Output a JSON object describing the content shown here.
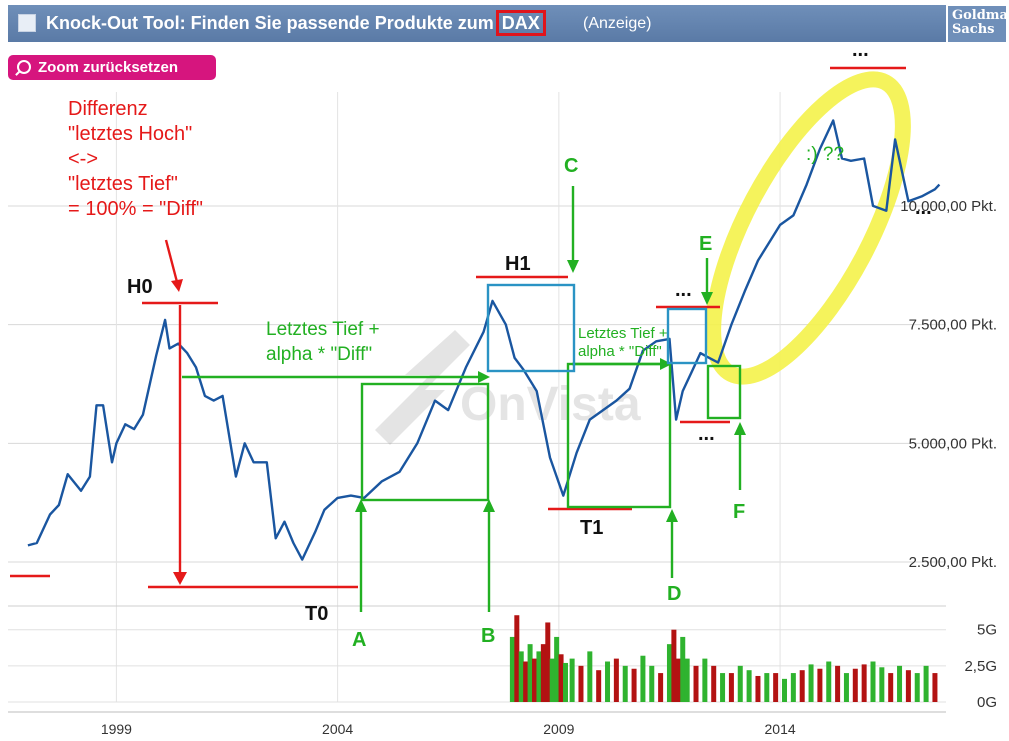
{
  "ad": {
    "title_prefix": "Knock-Out Tool: Finden Sie passende Produkte zum",
    "title_highlight": "DAX",
    "label": "(Anzeige)",
    "logo_line1": "Goldman",
    "logo_line2": "Sachs"
  },
  "toolbar": {
    "zoom_reset_label": "Zoom zurücksetzen"
  },
  "watermark": "OnVista",
  "annotations": {
    "diff_lines": [
      "Differenz",
      "\"letztes Hoch\"",
      "<->",
      "\"letztes Tief\"",
      "= 100% = \"Diff\""
    ],
    "rule_lines": [
      "Letztes Tief +",
      "alpha * \"Diff\""
    ],
    "rule_small_lines": [
      "Letztes Tief +",
      "alpha * \"Diff\""
    ],
    "smiley": ":) ??",
    "points": {
      "H0": "H0",
      "T0": "T0",
      "H1": "H1",
      "T1": "T1",
      "A": "A",
      "B": "B",
      "C": "C",
      "D": "D",
      "E": "E",
      "F": "F",
      "dots": "..."
    }
  },
  "colors": {
    "line": "#1a56a0",
    "annotation_red": "#e51919",
    "annotation_green": "#22b022",
    "box_blue": "#2a93c4",
    "highlight_yellow": "#f4f24a",
    "volume_up": "#2fb32f",
    "volume_down": "#b31212",
    "ad_bar": "#6f8fb9",
    "zoom_button": "#d6157e"
  },
  "chart_data": [
    {
      "type": "line",
      "title": "",
      "series": [
        {
          "name": "",
          "x": [
            1997.0,
            1997.2,
            1997.5,
            1997.7,
            1997.9,
            1998.2,
            1998.4,
            1998.55,
            1998.7,
            1998.9,
            1999.0,
            1999.2,
            1999.4,
            1999.6,
            1999.9,
            2000.1,
            2000.2,
            2000.4,
            2000.6,
            2000.8,
            2001.0,
            2001.2,
            2001.4,
            2001.7,
            2001.9,
            2002.1,
            2002.4,
            2002.6,
            2002.8,
            2003.0,
            2003.2,
            2003.5,
            2003.7,
            2004.0,
            2004.3,
            2004.6,
            2005.0,
            2005.4,
            2005.8,
            2006.2,
            2006.5,
            2006.9,
            2007.3,
            2007.5,
            2007.8,
            2008.0,
            2008.2,
            2008.5,
            2008.8,
            2009.1,
            2009.4,
            2009.7,
            2010.0,
            2010.3,
            2010.6,
            2010.9,
            2011.2,
            2011.5,
            2011.65,
            2011.8,
            2012.0,
            2012.2,
            2012.4,
            2012.6,
            2012.9,
            2013.2,
            2013.5,
            2013.8,
            2014.0,
            2014.3,
            2014.6,
            2014.9,
            2015.2,
            2015.4,
            2015.6,
            2015.9,
            2016.1,
            2016.4,
            2016.6,
            2016.9,
            2017.2,
            2017.5,
            2017.6
          ],
          "values": [
            2850,
            2900,
            3500,
            3700,
            4350,
            4000,
            4300,
            5800,
            5800,
            4600,
            5000,
            5400,
            5300,
            5600,
            6850,
            7600,
            7000,
            7100,
            6900,
            6600,
            6000,
            5900,
            6000,
            4300,
            5000,
            4600,
            4600,
            3000,
            3350,
            2900,
            2550,
            3150,
            3600,
            3850,
            3900,
            3850,
            4200,
            4400,
            5000,
            5900,
            5700,
            6600,
            7350,
            8000,
            7500,
            6800,
            6550,
            6100,
            4700,
            3900,
            4800,
            5500,
            5700,
            5900,
            6150,
            6950,
            7150,
            7200,
            5500,
            6100,
            6500,
            6900,
            6800,
            6700,
            7500,
            8200,
            8850,
            9300,
            9600,
            9800,
            10450,
            11200,
            11800,
            11000,
            10950,
            11000,
            10000,
            9900,
            11400,
            10100,
            10200,
            10350,
            10450
          ]
        }
      ],
      "xlabel": "",
      "ylabel": "",
      "xticks": [
        "1999",
        "2004",
        "2009",
        "2014"
      ],
      "yticks": [
        "2.500,00 Pkt.",
        "5.000,00 Pkt.",
        "7.500,00 Pkt.",
        "10.000,00 Pkt."
      ],
      "xlim": [
        1996.55,
        2017.75
      ],
      "ylim": [
        1700,
        12400
      ],
      "grid": true,
      "legend": "none"
    },
    {
      "type": "bar",
      "title": "",
      "yticks": [
        "5G",
        "2,5G",
        "0G"
      ],
      "ylim": [
        0,
        6.5
      ],
      "series": [
        {
          "name": "",
          "x": [
            2007.95,
            2008.05,
            2008.15,
            2008.25,
            2008.35,
            2008.45,
            2008.55,
            2008.65,
            2008.75,
            2008.85,
            2008.95,
            2009.05,
            2009.15,
            2009.3,
            2009.5,
            2009.7,
            2009.9,
            2010.1,
            2010.3,
            2010.5,
            2010.7,
            2010.9,
            2011.1,
            2011.3,
            2011.5,
            2011.6,
            2011.7,
            2011.8,
            2011.9,
            2012.1,
            2012.3,
            2012.5,
            2012.7,
            2012.9,
            2013.1,
            2013.3,
            2013.5,
            2013.7,
            2013.9,
            2014.1,
            2014.3,
            2014.5,
            2014.7,
            2014.9,
            2015.1,
            2015.3,
            2015.5,
            2015.7,
            2015.9,
            2016.1,
            2016.3,
            2016.5,
            2016.7,
            2016.9,
            2017.1,
            2017.3,
            2017.5
          ],
          "values": [
            4.5,
            6.0,
            3.5,
            2.8,
            4.0,
            3.0,
            3.5,
            4.0,
            5.5,
            3.0,
            4.5,
            3.3,
            2.7,
            3.0,
            2.5,
            3.5,
            2.2,
            2.8,
            3.0,
            2.5,
            2.3,
            3.2,
            2.5,
            2.0,
            4.0,
            5.0,
            3.0,
            4.5,
            3.0,
            2.5,
            3.0,
            2.5,
            2.0,
            2.0,
            2.5,
            2.2,
            1.8,
            2.0,
            2.0,
            1.6,
            2.0,
            2.2,
            2.6,
            2.3,
            2.8,
            2.5,
            2.0,
            2.3,
            2.6,
            2.8,
            2.4,
            2.0,
            2.5,
            2.2,
            2.0,
            2.5,
            2.0
          ],
          "up": [
            1,
            0,
            1,
            0,
            1,
            0,
            1,
            0,
            0,
            1,
            1,
            0,
            1,
            1,
            0,
            1,
            0,
            1,
            0,
            1,
            0,
            1,
            1,
            0,
            1,
            0,
            0,
            1,
            1,
            0,
            1,
            0,
            1,
            0,
            1,
            1,
            0,
            1,
            0,
            1,
            1,
            0,
            1,
            0,
            1,
            0,
            1,
            0,
            0,
            1,
            1,
            0,
            1,
            0,
            1,
            1,
            0
          ]
        }
      ]
    }
  ]
}
